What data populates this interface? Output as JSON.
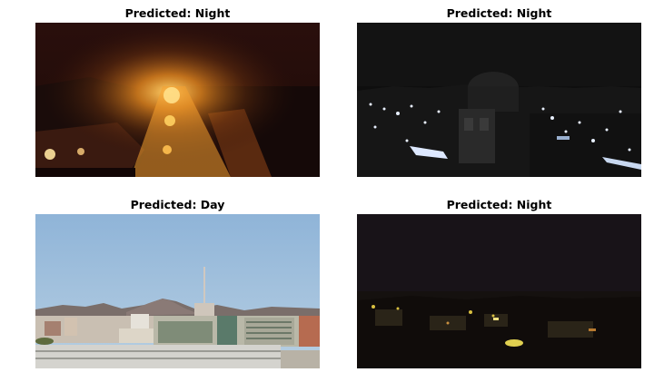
{
  "panels": [
    {
      "title": "Predicted: Night",
      "scene": "night street with orange streetlights"
    },
    {
      "title": "Predicted: Night",
      "scene": "dark city skyline with dome"
    },
    {
      "title": "Predicted: Day",
      "scene": "daytime city with mountains and building"
    },
    {
      "title": "Predicted: Night",
      "scene": "very dark town with few lights"
    }
  ]
}
